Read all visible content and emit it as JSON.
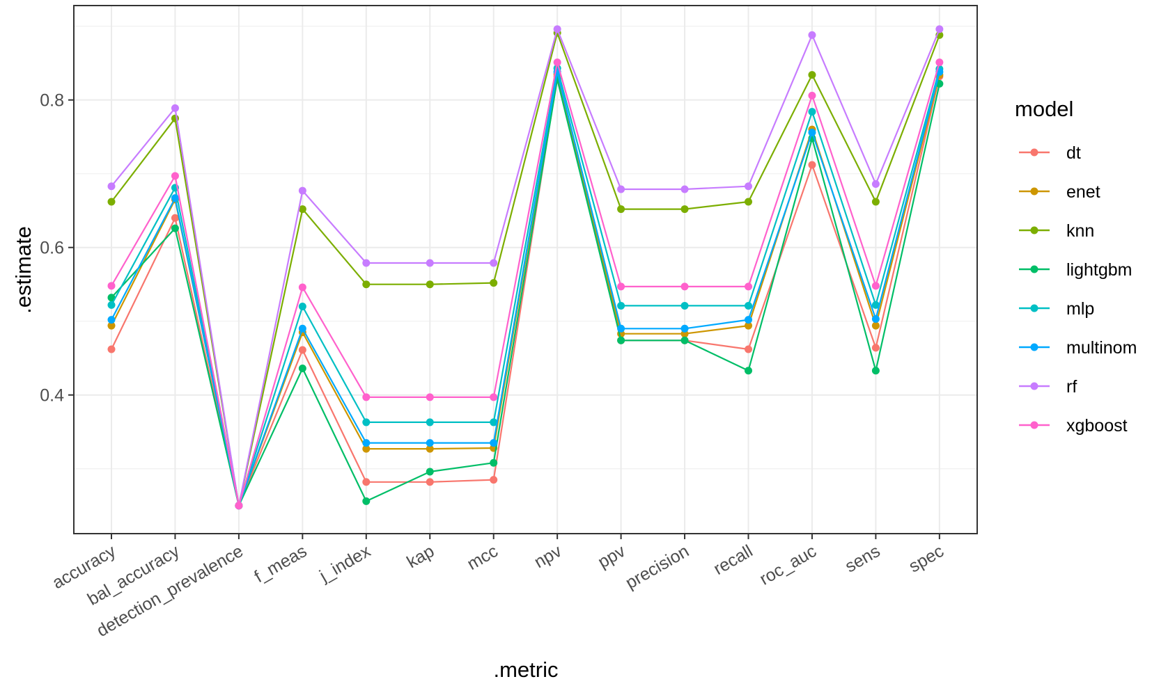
{
  "chart_data": {
    "type": "line",
    "title": "",
    "xlabel": ".metric",
    "ylabel": ".estimate",
    "ylim": [
      0.212,
      0.928
    ],
    "y_ticks": [
      0.4,
      0.6,
      0.8
    ],
    "y_tick_labels": [
      "0.4",
      "0.6",
      "0.8"
    ],
    "grid": true,
    "legend_title": "model",
    "legend_position": "right",
    "categories": [
      "accuracy",
      "bal_accuracy",
      "detection_prevalence",
      "f_meas",
      "j_index",
      "kap",
      "mcc",
      "npv",
      "ppv",
      "precision",
      "recall",
      "roc_auc",
      "sens",
      "spec"
    ],
    "series": [
      {
        "name": "dt",
        "color": "#F8766D",
        "values": [
          0.462,
          0.64,
          0.25,
          0.461,
          0.282,
          0.282,
          0.285,
          0.832,
          0.474,
          0.474,
          0.462,
          0.712,
          0.464,
          0.832
        ]
      },
      {
        "name": "enet",
        "color": "#CD9600",
        "values": [
          0.494,
          0.665,
          0.25,
          0.485,
          0.327,
          0.327,
          0.328,
          0.835,
          0.483,
          0.483,
          0.494,
          0.76,
          0.494,
          0.834
        ]
      },
      {
        "name": "knn",
        "color": "#7CAE00",
        "values": [
          0.662,
          0.775,
          0.25,
          0.652,
          0.55,
          0.55,
          0.552,
          0.891,
          0.652,
          0.652,
          0.662,
          0.834,
          0.662,
          0.888
        ]
      },
      {
        "name": "lightgbm",
        "color": "#00BE67",
        "values": [
          0.532,
          0.626,
          0.25,
          0.436,
          0.256,
          0.296,
          0.308,
          0.828,
          0.474,
          0.474,
          0.433,
          0.748,
          0.433,
          0.822
        ]
      },
      {
        "name": "mlp",
        "color": "#00BFC4",
        "values": [
          0.522,
          0.681,
          0.25,
          0.52,
          0.363,
          0.363,
          0.363,
          0.843,
          0.521,
          0.521,
          0.521,
          0.784,
          0.522,
          0.842
        ]
      },
      {
        "name": "multinom",
        "color": "#00A9FF",
        "values": [
          0.502,
          0.667,
          0.25,
          0.49,
          0.335,
          0.335,
          0.335,
          0.838,
          0.49,
          0.49,
          0.502,
          0.756,
          0.503,
          0.838
        ]
      },
      {
        "name": "rf",
        "color": "#C77CFF",
        "values": [
          0.683,
          0.789,
          0.25,
          0.677,
          0.579,
          0.579,
          0.579,
          0.896,
          0.679,
          0.679,
          0.683,
          0.888,
          0.686,
          0.896
        ]
      },
      {
        "name": "xgboost",
        "color": "#FF61CC",
        "values": [
          0.548,
          0.697,
          0.25,
          0.546,
          0.397,
          0.397,
          0.397,
          0.851,
          0.547,
          0.547,
          0.547,
          0.806,
          0.548,
          0.851
        ]
      }
    ]
  }
}
